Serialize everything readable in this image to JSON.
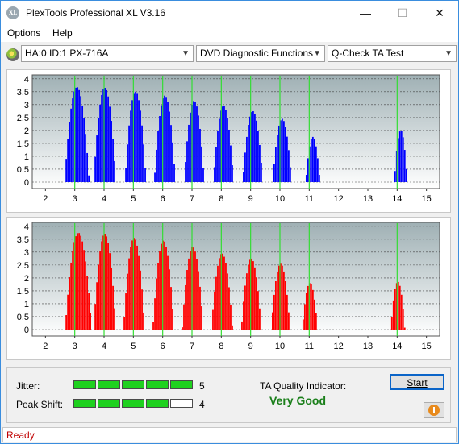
{
  "window": {
    "title": "PlexTools Professional XL V3.16",
    "icon_text": "XL",
    "controls": [
      "minimize-icon",
      "maximize-icon",
      "close-icon"
    ]
  },
  "menu": {
    "items": [
      "Options",
      "Help"
    ]
  },
  "toolbar": {
    "drive": "HA:0 ID:1  PX-716A",
    "function": "DVD Diagnostic Functions",
    "test": "Q-Check TA Test"
  },
  "chart_data": [
    {
      "type": "bar",
      "series_color": "#0000ff",
      "xticks": [
        2,
        3,
        4,
        5,
        6,
        7,
        8,
        9,
        10,
        11,
        12,
        13,
        14,
        15
      ],
      "ytick_labels": [
        "4",
        "3.5",
        "3",
        "2.5",
        "2",
        "1.5",
        "1",
        "0.5",
        "0"
      ],
      "xlim": [
        1.55,
        15.45
      ],
      "ylim": [
        -0.25,
        4.15
      ],
      "peak_markers_x": [
        3,
        4,
        5,
        6,
        7,
        8,
        9,
        10,
        11,
        14
      ],
      "grid": true,
      "lobes": [
        {
          "center": 3.05,
          "height": 3.68,
          "width": 0.42
        },
        {
          "center": 4.0,
          "height": 3.65,
          "width": 0.38
        },
        {
          "center": 5.05,
          "height": 3.5,
          "width": 0.36
        },
        {
          "center": 6.05,
          "height": 3.35,
          "width": 0.36
        },
        {
          "center": 7.05,
          "height": 3.15,
          "width": 0.34
        },
        {
          "center": 8.05,
          "height": 2.95,
          "width": 0.34
        },
        {
          "center": 9.05,
          "height": 2.75,
          "width": 0.34
        },
        {
          "center": 10.05,
          "height": 2.45,
          "width": 0.32
        },
        {
          "center": 11.1,
          "height": 1.75,
          "width": 0.24
        },
        {
          "center": 14.1,
          "height": 2.0,
          "width": 0.22
        }
      ]
    },
    {
      "type": "bar",
      "series_color": "#ff0000",
      "xticks": [
        2,
        3,
        4,
        5,
        6,
        7,
        8,
        9,
        10,
        11,
        12,
        13,
        14,
        15
      ],
      "ytick_labels": [
        "4",
        "3.5",
        "3",
        "2.5",
        "2",
        "1.5",
        "1",
        "0.5",
        "0"
      ],
      "xlim": [
        1.55,
        15.45
      ],
      "ylim": [
        -0.25,
        4.15
      ],
      "peak_markers_x": [
        3,
        4,
        5,
        6,
        7,
        8,
        9,
        10,
        11,
        14
      ],
      "grid": true,
      "lobes": [
        {
          "center": 3.1,
          "height": 3.75,
          "width": 0.45
        },
        {
          "center": 4.0,
          "height": 3.7,
          "width": 0.38
        },
        {
          "center": 5.0,
          "height": 3.55,
          "width": 0.36
        },
        {
          "center": 6.0,
          "height": 3.45,
          "width": 0.36
        },
        {
          "center": 7.0,
          "height": 3.2,
          "width": 0.36
        },
        {
          "center": 8.0,
          "height": 2.95,
          "width": 0.36
        },
        {
          "center": 9.0,
          "height": 2.75,
          "width": 0.34
        },
        {
          "center": 10.0,
          "height": 2.55,
          "width": 0.32
        },
        {
          "center": 11.0,
          "height": 1.8,
          "width": 0.26
        },
        {
          "center": 14.0,
          "height": 1.85,
          "width": 0.24
        }
      ]
    }
  ],
  "metrics": {
    "jitter": {
      "label": "Jitter:",
      "value": "5",
      "segments_filled": 5,
      "segments_total": 5
    },
    "peak_shift": {
      "label": "Peak Shift:",
      "value": "4",
      "segments_filled": 4,
      "segments_total": 5
    },
    "ta_label": "TA Quality Indicator:",
    "ta_value": "Very Good",
    "ta_color": "#1a7f1a",
    "start_label": "Start",
    "info_icon": "info-icon"
  },
  "status": {
    "text": "Ready",
    "color": "#c00000"
  }
}
